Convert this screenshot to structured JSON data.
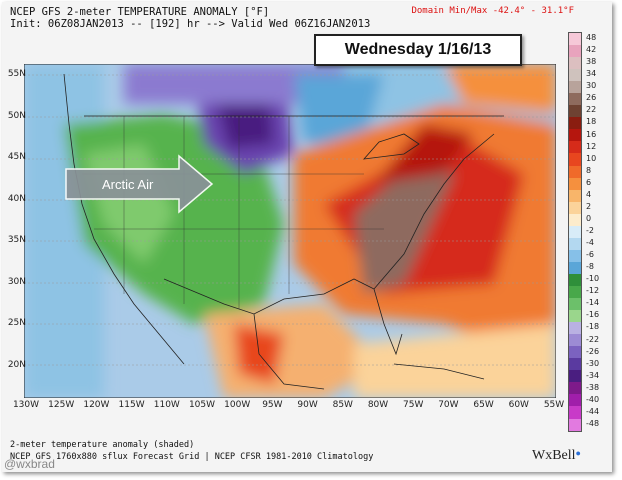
{
  "header": {
    "line1": "NCEP GFS 2-meter TEMPERATURE ANOMALY [°F]",
    "line2": "Init: 06Z08JAN2013 -- [192] hr --> Valid Wed 06Z16JAN2013",
    "domain_minmax": "Domain Min/Max -42.4° - 31.1°F"
  },
  "day_label": "Wednesday 1/16/13",
  "arrow_label": "Arctic Air",
  "lat_labels": [
    "55N",
    "50N",
    "45N",
    "40N",
    "35N",
    "30N",
    "25N",
    "20N"
  ],
  "lon_labels": [
    "130W",
    "125W",
    "120W",
    "115W",
    "110W",
    "105W",
    "100W",
    "95W",
    "90W",
    "85W",
    "80W",
    "75W",
    "70W",
    "65W",
    "60W",
    "55W"
  ],
  "colorbar": {
    "labels": [
      "48",
      "42",
      "38",
      "34",
      "30",
      "26",
      "22",
      "18",
      "16",
      "12",
      "10",
      "8",
      "6",
      "4",
      "2",
      "0",
      "-2",
      "-4",
      "-6",
      "-8",
      "-10",
      "-12",
      "-14",
      "-16",
      "-18",
      "-22",
      "-26",
      "-30",
      "-34",
      "-38",
      "-40",
      "-44",
      "-48"
    ],
    "colors": [
      "#f6c8d8",
      "#e8a3bd",
      "#dcbfc0",
      "#cfc2bd",
      "#b8a39b",
      "#8e6b5e",
      "#6e4232",
      "#8a1d10",
      "#b5160e",
      "#d62b1a",
      "#e8461f",
      "#f06a2a",
      "#f5903e",
      "#f8b56a",
      "#fbd39a",
      "#fdeccc",
      "#d8ecf8",
      "#b3d8f0",
      "#86c0e8",
      "#5aa6d8",
      "#2f8f3a",
      "#48a84a",
      "#6cc06a",
      "#9ad68c",
      "#b9b1e2",
      "#9c8bd4",
      "#7b62c0",
      "#5a3aa0",
      "#4a1e80",
      "#7e1a8a",
      "#a01eaa",
      "#c83ac8",
      "#e27ae0"
    ]
  },
  "footer": {
    "line1": "2-meter temperature anomaly (shaded)",
    "line2": "NCEP GFS 1760x880 sflux Forecast Grid | NCEP CFSR 1981-2010 Climatology"
  },
  "logo": "WxBell",
  "handle": "@wxbrad"
}
